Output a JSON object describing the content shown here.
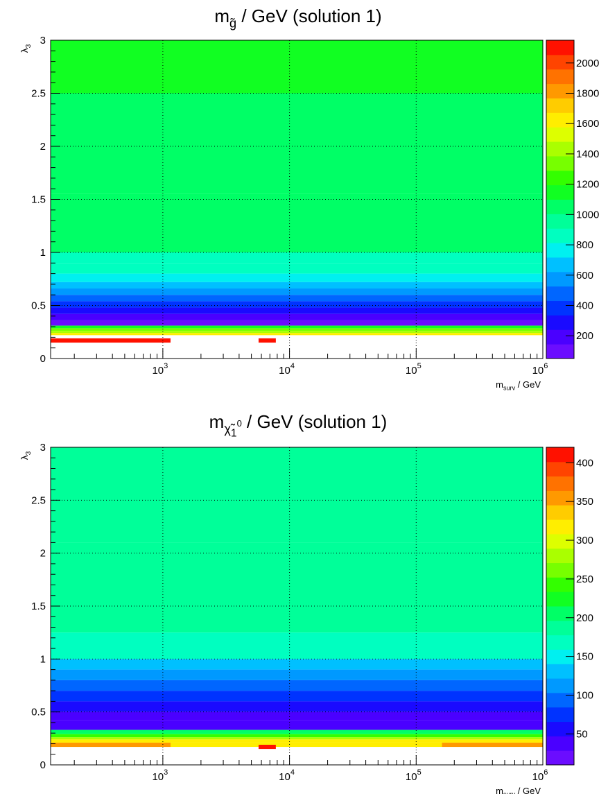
{
  "chart_data": [
    {
      "type": "heatmap",
      "title": {
        "base": "m",
        "sub": "g̃",
        "rest": " / GeV (solution 1)"
      },
      "xlabel": {
        "base": "m",
        "sub": "surv",
        "rest": " / GeV"
      },
      "ylabel": {
        "base": "λ",
        "sub": "3"
      },
      "x_scale": "log",
      "xlim": [
        130,
        1000000
      ],
      "ylim": [
        0,
        3
      ],
      "x_ticks": [
        {
          "base": "10",
          "exp": "3",
          "value": 1000
        },
        {
          "base": "10",
          "exp": "4",
          "value": 10000
        },
        {
          "base": "10",
          "exp": "5",
          "value": 100000
        },
        {
          "base": "10",
          "exp": "6",
          "value": 1000000
        }
      ],
      "y_ticks": [
        "0",
        "0.5",
        "1",
        "1.5",
        "2",
        "2.5",
        "3"
      ],
      "grid": true,
      "colorbar": {
        "min": 50,
        "max": 2150,
        "ticks": [
          "200",
          "400",
          "600",
          "800",
          "1000",
          "1200",
          "1400",
          "1600",
          "1800",
          "2000"
        ]
      },
      "cells": [
        {
          "x": [
            130,
            1000000
          ],
          "y": [
            2.5,
            3.0
          ],
          "v": 1150
        },
        {
          "x": [
            130,
            1000000
          ],
          "y": [
            1.55,
            2.5
          ],
          "v": 1090
        },
        {
          "x": [
            130,
            1000000
          ],
          "y": [
            1.0,
            1.55
          ],
          "v": 1010
        },
        {
          "x": [
            130,
            1000000
          ],
          "y": [
            0.9,
            1.0
          ],
          "v": 900
        },
        {
          "x": [
            130,
            1000000
          ],
          "y": [
            0.8,
            0.9
          ],
          "v": 820
        },
        {
          "x": [
            130,
            1000000
          ],
          "y": [
            0.72,
            0.8
          ],
          "v": 740
        },
        {
          "x": [
            130,
            1000000
          ],
          "y": [
            0.66,
            0.72
          ],
          "v": 660
        },
        {
          "x": [
            130,
            1000000
          ],
          "y": [
            0.6,
            0.66
          ],
          "v": 580
        },
        {
          "x": [
            130,
            1000000
          ],
          "y": [
            0.54,
            0.6
          ],
          "v": 500
        },
        {
          "x": [
            130,
            1000000
          ],
          "y": [
            0.48,
            0.54
          ],
          "v": 410
        },
        {
          "x": [
            130,
            1000000
          ],
          "y": [
            0.42,
            0.48
          ],
          "v": 300
        },
        {
          "x": [
            130,
            1000000
          ],
          "y": [
            0.36,
            0.42
          ],
          "v": 200
        },
        {
          "x": [
            130,
            1000000
          ],
          "y": [
            0.31,
            0.36
          ],
          "v": 120
        },
        {
          "x": [
            130,
            1000000
          ],
          "y": [
            0.285,
            0.31
          ],
          "v": 1100
        },
        {
          "x": [
            130,
            1000000
          ],
          "y": [
            0.26,
            0.285
          ],
          "v": 1320
        },
        {
          "x": [
            130,
            1000000
          ],
          "y": [
            0.24,
            0.26
          ],
          "v": 1450
        },
        {
          "x": [
            130,
            1000000
          ],
          "y": [
            0.22,
            0.24
          ],
          "v": 1620
        },
        {
          "x": [
            130,
            1150
          ],
          "y": [
            0.15,
            0.19
          ],
          "v": 2100
        },
        {
          "x": [
            5700,
            7800
          ],
          "y": [
            0.15,
            0.19
          ],
          "v": 2100
        }
      ]
    },
    {
      "type": "heatmap",
      "title": {
        "base": "m",
        "sub": "χ̃",
        "subsub": "1",
        "sup": "0",
        "rest": " / GeV (solution 1)"
      },
      "xlabel": {
        "base": "m",
        "sub": "surv",
        "rest": " / GeV"
      },
      "ylabel": {
        "base": "λ",
        "sub": "3"
      },
      "x_scale": "log",
      "xlim": [
        130,
        1000000
      ],
      "ylim": [
        0,
        3
      ],
      "x_ticks": [
        {
          "base": "10",
          "exp": "3",
          "value": 1000
        },
        {
          "base": "10",
          "exp": "4",
          "value": 10000
        },
        {
          "base": "10",
          "exp": "5",
          "value": 100000
        },
        {
          "base": "10",
          "exp": "6",
          "value": 1000000
        }
      ],
      "y_ticks": [
        "0",
        "0.5",
        "1",
        "1.5",
        "2",
        "2.5",
        "3"
      ],
      "grid": true,
      "colorbar": {
        "min": 10,
        "max": 420,
        "ticks": [
          "50",
          "100",
          "150",
          "200",
          "250",
          "300",
          "350",
          "400"
        ]
      },
      "cells": [
        {
          "x": [
            130,
            1000000
          ],
          "y": [
            2.1,
            3.0
          ],
          "v": 195
        },
        {
          "x": [
            130,
            1000000
          ],
          "y": [
            1.25,
            2.1
          ],
          "v": 180
        },
        {
          "x": [
            130,
            1000000
          ],
          "y": [
            1.0,
            1.25
          ],
          "v": 160
        },
        {
          "x": [
            130,
            1000000
          ],
          "y": [
            0.9,
            1.0
          ],
          "v": 140
        },
        {
          "x": [
            130,
            1000000
          ],
          "y": [
            0.8,
            0.9
          ],
          "v": 120
        },
        {
          "x": [
            130,
            1000000
          ],
          "y": [
            0.7,
            0.8
          ],
          "v": 100
        },
        {
          "x": [
            130,
            1000000
          ],
          "y": [
            0.6,
            0.7
          ],
          "v": 80
        },
        {
          "x": [
            130,
            1000000
          ],
          "y": [
            0.5,
            0.6
          ],
          "v": 55
        },
        {
          "x": [
            130,
            1000000
          ],
          "y": [
            0.42,
            0.5
          ],
          "v": 40
        },
        {
          "x": [
            130,
            1000000
          ],
          "y": [
            0.33,
            0.42
          ],
          "v": 30
        },
        {
          "x": [
            130,
            1000000
          ],
          "y": [
            0.29,
            0.33
          ],
          "v": 200
        },
        {
          "x": [
            130,
            1000000
          ],
          "y": [
            0.26,
            0.29
          ],
          "v": 240
        },
        {
          "x": [
            130,
            1000000
          ],
          "y": [
            0.24,
            0.26
          ],
          "v": 280
        },
        {
          "x": [
            130,
            1000000
          ],
          "y": [
            0.21,
            0.24
          ],
          "v": 310
        },
        {
          "x": [
            130,
            1000000
          ],
          "y": [
            0.17,
            0.21
          ],
          "v": 320
        },
        {
          "x": [
            130,
            1150
          ],
          "y": [
            0.17,
            0.21
          ],
          "v": 355
        },
        {
          "x": [
            160000,
            1000000
          ],
          "y": [
            0.17,
            0.21
          ],
          "v": 355
        },
        {
          "x": [
            5700,
            7800
          ],
          "y": [
            0.15,
            0.19
          ],
          "v": 410
        }
      ]
    }
  ]
}
